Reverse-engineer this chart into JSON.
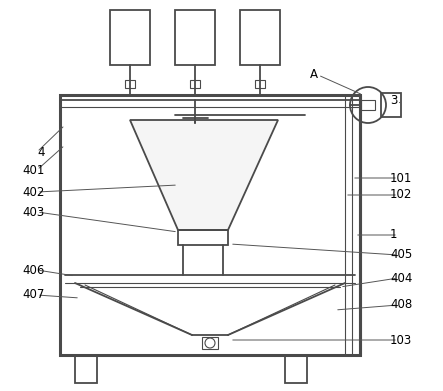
{
  "bg_color": "#ffffff",
  "line_color": "#4a4a4a",
  "lw": 1.3,
  "tlw": 0.8,
  "fig_width": 4.43,
  "fig_height": 3.91
}
